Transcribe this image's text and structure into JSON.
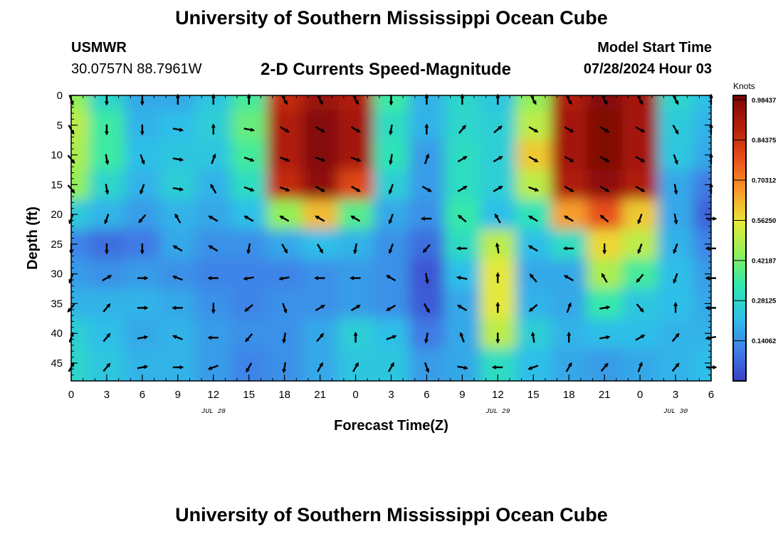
{
  "header": {
    "title": "University of Southern Mississippi Ocean Cube",
    "station": "USMWR",
    "coordinates": "30.0757N  88.7961W",
    "subtitle": "2-D Currents Speed-Magnitude",
    "model_start_label": "Model Start Time",
    "model_start_value": "07/28/2024 Hour 03"
  },
  "footer": {
    "title": "University of Southern Mississippi Ocean Cube"
  },
  "colors": {
    "palette": [
      "#3b3fc7",
      "#3f80e8",
      "#2fc0e8",
      "#2ee8b0",
      "#8ef05a",
      "#e8e838",
      "#f89a2a",
      "#e8501a",
      "#b51e0a",
      "#7a0606"
    ],
    "arrow": "#000000"
  },
  "chart_data": {
    "type": "heatmap",
    "xlabel": "Forecast Time(Z)",
    "ylabel": "Depth (ft)",
    "x_tick_labels": [
      "0",
      "3",
      "6",
      "9",
      "12",
      "15",
      "18",
      "21",
      "0",
      "3",
      "6",
      "9",
      "12",
      "15",
      "18",
      "21",
      "0",
      "3",
      "6"
    ],
    "date_labels": [
      {
        "label": "JUL 28",
        "at_tick": 4
      },
      {
        "label": "JUL 29",
        "at_tick": 12
      },
      {
        "label": "JUL 30",
        "at_tick": 17
      }
    ],
    "y_ticks": [
      0,
      5,
      10,
      15,
      20,
      25,
      30,
      35,
      40,
      45
    ],
    "ylim": [
      0,
      48
    ],
    "colorbar": {
      "unit": "Knots",
      "min": 0.0,
      "max": 1.0,
      "tick_labels": [
        "0.98437",
        "0.84375",
        "0.70312",
        "0.56250",
        "0.42187",
        "0.28125",
        "0.14062"
      ],
      "tick_values": [
        0.98437,
        0.84375,
        0.70312,
        0.5625,
        0.42187,
        0.28125,
        0.14062
      ]
    },
    "speed_columns": [
      0,
      3,
      6,
      9,
      12,
      15,
      18,
      21,
      24,
      27,
      30,
      33,
      36,
      39,
      42,
      45,
      48,
      51,
      54
    ],
    "speed_depths": [
      0,
      5,
      10,
      15,
      20,
      25,
      30,
      35,
      40,
      45
    ],
    "speed": [
      [
        0.45,
        0.28,
        0.18,
        0.18,
        0.24,
        0.36,
        0.86,
        0.94,
        0.9,
        0.35,
        0.2,
        0.28,
        0.24,
        0.45,
        0.9,
        0.98,
        0.92,
        0.28,
        0.22
      ],
      [
        0.5,
        0.35,
        0.2,
        0.22,
        0.26,
        0.4,
        0.9,
        0.98,
        0.92,
        0.3,
        0.2,
        0.28,
        0.26,
        0.5,
        0.92,
        0.99,
        0.92,
        0.25,
        0.2
      ],
      [
        0.48,
        0.35,
        0.22,
        0.24,
        0.24,
        0.36,
        0.9,
        0.98,
        0.92,
        0.32,
        0.16,
        0.3,
        0.26,
        0.6,
        0.92,
        0.99,
        0.92,
        0.24,
        0.18
      ],
      [
        0.45,
        0.28,
        0.2,
        0.26,
        0.2,
        0.3,
        0.86,
        0.96,
        0.8,
        0.26,
        0.16,
        0.3,
        0.26,
        0.5,
        0.9,
        0.96,
        0.9,
        0.18,
        0.1
      ],
      [
        0.25,
        0.2,
        0.16,
        0.2,
        0.18,
        0.22,
        0.45,
        0.62,
        0.38,
        0.18,
        0.14,
        0.34,
        0.22,
        0.32,
        0.66,
        0.78,
        0.6,
        0.18,
        0.06
      ],
      [
        0.12,
        0.08,
        0.1,
        0.18,
        0.14,
        0.14,
        0.18,
        0.22,
        0.2,
        0.14,
        0.08,
        0.3,
        0.5,
        0.22,
        0.3,
        0.58,
        0.5,
        0.2,
        0.12
      ],
      [
        0.16,
        0.14,
        0.16,
        0.14,
        0.12,
        0.12,
        0.12,
        0.14,
        0.16,
        0.14,
        0.04,
        0.22,
        0.55,
        0.18,
        0.18,
        0.48,
        0.36,
        0.22,
        0.16
      ],
      [
        0.2,
        0.2,
        0.2,
        0.18,
        0.14,
        0.12,
        0.14,
        0.14,
        0.16,
        0.14,
        0.05,
        0.18,
        0.55,
        0.2,
        0.18,
        0.34,
        0.24,
        0.22,
        0.18
      ],
      [
        0.26,
        0.22,
        0.18,
        0.2,
        0.16,
        0.14,
        0.14,
        0.18,
        0.26,
        0.22,
        0.1,
        0.18,
        0.5,
        0.26,
        0.2,
        0.22,
        0.22,
        0.2,
        0.2
      ],
      [
        0.28,
        0.24,
        0.2,
        0.2,
        0.16,
        0.12,
        0.14,
        0.18,
        0.24,
        0.24,
        0.16,
        0.18,
        0.3,
        0.22,
        0.18,
        0.16,
        0.18,
        0.2,
        0.22
      ]
    ],
    "vector_columns": [
      0,
      3,
      6,
      9,
      12,
      15,
      18,
      21,
      24,
      27,
      30,
      33,
      36,
      39,
      42,
      45,
      48,
      51,
      54
    ],
    "vector_depths": [
      0,
      5,
      10,
      15,
      20,
      25,
      30,
      35,
      40,
      45
    ],
    "direction_deg": [
      [
        160,
        180,
        180,
        0,
        0,
        0,
        150,
        150,
        150,
        180,
        0,
        0,
        0,
        150,
        150,
        150,
        150,
        150,
        0
      ],
      [
        150,
        180,
        180,
        100,
        0,
        100,
        120,
        120,
        120,
        190,
        0,
        40,
        50,
        120,
        120,
        120,
        120,
        150,
        0
      ],
      [
        140,
        170,
        160,
        100,
        20,
        110,
        110,
        110,
        110,
        190,
        20,
        60,
        60,
        120,
        120,
        120,
        120,
        160,
        0
      ],
      [
        140,
        170,
        200,
        100,
        330,
        110,
        110,
        120,
        120,
        200,
        120,
        60,
        60,
        110,
        120,
        120,
        120,
        170,
        0
      ],
      [
        200,
        200,
        220,
        330,
        300,
        300,
        300,
        300,
        300,
        200,
        270,
        310,
        330,
        300,
        300,
        310,
        200,
        170,
        90
      ],
      [
        180,
        180,
        180,
        300,
        300,
        190,
        150,
        150,
        190,
        200,
        220,
        270,
        350,
        300,
        270,
        180,
        200,
        200,
        270
      ],
      [
        200,
        60,
        90,
        290,
        270,
        260,
        260,
        270,
        270,
        300,
        170,
        280,
        0,
        320,
        300,
        330,
        220,
        200,
        270
      ],
      [
        220,
        40,
        90,
        270,
        180,
        230,
        160,
        60,
        60,
        240,
        150,
        300,
        0,
        230,
        20,
        80,
        140,
        0,
        270
      ],
      [
        20,
        40,
        80,
        290,
        270,
        220,
        190,
        40,
        0,
        70,
        190,
        340,
        180,
        350,
        0,
        80,
        60,
        40,
        260
      ],
      [
        30,
        40,
        80,
        90,
        250,
        210,
        190,
        30,
        30,
        30,
        160,
        100,
        270,
        250,
        30,
        40,
        20,
        40,
        90
      ]
    ]
  }
}
